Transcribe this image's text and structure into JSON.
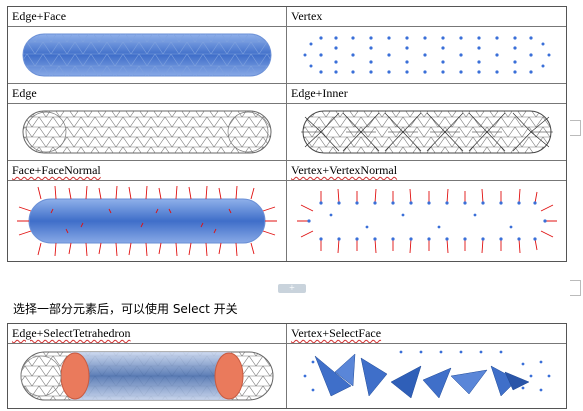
{
  "grid": {
    "row1": {
      "left": "Edge+Face",
      "right": "Vertex"
    },
    "row2": {
      "left": "Edge",
      "right": "Edge+Inner"
    },
    "row3": {
      "left": "Face+FaceNormal",
      "right": "Vertex+VertexNormal"
    }
  },
  "caption": "选择一部分元素后，可以使用 Select 开关",
  "grid2": {
    "row1": {
      "left": "Edge+SelectTetrahedron",
      "right": "Vertex+SelectFace"
    }
  },
  "handle_symbol": "+",
  "colors": {
    "mesh_blue": "#4f7fd0",
    "vertex_blue": "#3a6fd8",
    "normal_red": "#e01010",
    "select_orange": "#ea7a5c",
    "wire_gray": "#888888"
  }
}
